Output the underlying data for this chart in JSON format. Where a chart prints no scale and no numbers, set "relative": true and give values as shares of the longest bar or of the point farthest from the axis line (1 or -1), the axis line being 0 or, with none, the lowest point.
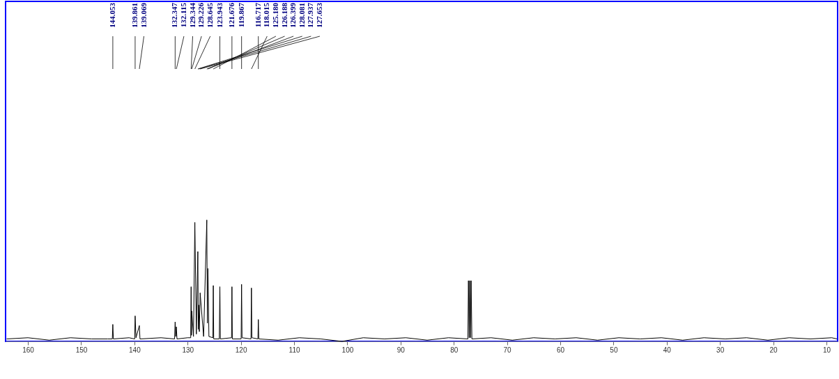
{
  "chart_data": {
    "type": "line",
    "relative": true,
    "xlim": [
      164.2,
      7.9
    ],
    "xticks": [
      160,
      150,
      140,
      130,
      120,
      110,
      100,
      90,
      80,
      70,
      60,
      50,
      40,
      30,
      20,
      10
    ],
    "grid": false,
    "marker": "none",
    "line_style": "solid",
    "series": [
      {
        "color": "#000000",
        "x": [
          164,
          160,
          156,
          152,
          148,
          145,
          144.15,
          144.053,
          143.95,
          141,
          139.95,
          139.861,
          139.7,
          139.069,
          138.95,
          135,
          132.45,
          132.347,
          132.23,
          132.115,
          132.0,
          130,
          129.42,
          129.344,
          129.28,
          129.226,
          128.9,
          128.645,
          128.36,
          128.081,
          128.0,
          127.937,
          127.8,
          127.653,
          127.0,
          126.399,
          126.29,
          126.188,
          126.0,
          125.25,
          125.18,
          125.1,
          124.05,
          123.943,
          123.85,
          121.75,
          121.676,
          121.6,
          119.95,
          119.867,
          119.78,
          118.1,
          118.015,
          117.93,
          116.8,
          116.717,
          116.63,
          113,
          109,
          105,
          101,
          97,
          93,
          89,
          85,
          81,
          77.35,
          77.25,
          77.1,
          77.0,
          76.85,
          76.74,
          76.6,
          73,
          69,
          65,
          61,
          57,
          53,
          49,
          45,
          41,
          37,
          33,
          29,
          25,
          21,
          17,
          13,
          9,
          8
        ],
        "values": [
          0.02,
          0.03,
          0.01,
          0.03,
          0.02,
          0.02,
          0.02,
          0.14,
          0.02,
          0.03,
          0.02,
          0.21,
          0.03,
          0.13,
          0.02,
          0.03,
          0.02,
          0.16,
          0.04,
          0.12,
          0.02,
          0.03,
          0.03,
          0.45,
          0.05,
          0.25,
          0.04,
          0.98,
          0.06,
          0.74,
          0.1,
          0.3,
          0.08,
          0.4,
          0.04,
          1.0,
          0.15,
          0.6,
          0.04,
          0.03,
          0.46,
          0.02,
          0.02,
          0.45,
          0.02,
          0.03,
          0.45,
          0.02,
          0.02,
          0.47,
          0.03,
          0.02,
          0.44,
          0.03,
          0.02,
          0.18,
          0.02,
          0.01,
          0.03,
          0.02,
          0.0,
          0.03,
          0.02,
          0.03,
          0.01,
          0.03,
          0.02,
          0.5,
          0.03,
          0.5,
          0.03,
          0.5,
          0.02,
          0.03,
          0.01,
          0.03,
          0.02,
          0.03,
          0.01,
          0.03,
          0.02,
          0.03,
          0.01,
          0.03,
          0.02,
          0.03,
          0.01,
          0.03,
          0.02,
          0.03,
          0.02
        ]
      }
    ],
    "annotations": [
      {
        "text": "144.053",
        "x": 144.053
      },
      {
        "text": "139.861",
        "x": 139.861
      },
      {
        "text": "139.069",
        "x": 139.069
      },
      {
        "text": "132.347",
        "x": 132.347
      },
      {
        "text": "132.115",
        "x": 132.115
      },
      {
        "text": "129.344",
        "x": 129.344
      },
      {
        "text": "129.226",
        "x": 129.226
      },
      {
        "text": "128.645",
        "x": 128.645
      },
      {
        "text": "123.943",
        "x": 123.943
      },
      {
        "text": "121.676",
        "x": 121.676
      },
      {
        "text": "119.867",
        "x": 119.867
      },
      {
        "text": "116.717",
        "x": 116.717
      },
      {
        "text": "118.015",
        "x": 118.015
      },
      {
        "text": "125.180",
        "x": 125.18
      },
      {
        "text": "126.188",
        "x": 126.188
      },
      {
        "text": "126.399",
        "x": 126.399
      },
      {
        "text": "128.081",
        "x": 128.081
      },
      {
        "text": "127.937",
        "x": 127.937
      },
      {
        "text": "127.653",
        "x": 127.653
      }
    ]
  }
}
